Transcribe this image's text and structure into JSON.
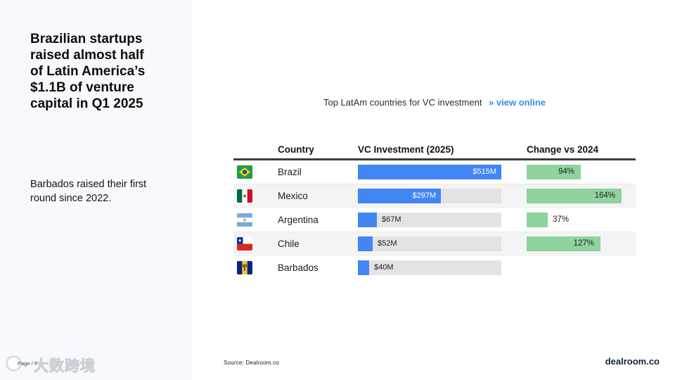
{
  "sidebar": {
    "title": "Brazilian startups raised almost half of Latin America’s $1.1B of venture capital in Q1 2025",
    "subtitle": "Barbados raised their first round since 2022."
  },
  "chart_header": {
    "title": "Top LatAm countries for VC investment",
    "link_arrows": "»",
    "link_label": "view online"
  },
  "table": {
    "columns": [
      "Country",
      "VC Investment (2025)",
      "Change vs 2024"
    ]
  },
  "chart_data": {
    "type": "bar",
    "title": "Top LatAm countries for VC investment",
    "categories": [
      "Brazil",
      "Mexico",
      "Argentina",
      "Chile",
      "Barbados"
    ],
    "series": [
      {
        "name": "VC Investment (2025)",
        "unit": "USD million",
        "values": [
          515,
          297,
          67,
          52,
          40
        ],
        "labels": [
          "$515M",
          "$297M",
          "$67M",
          "$52M",
          "$40M"
        ],
        "max": 515,
        "color": "#4285f4"
      },
      {
        "name": "Change vs 2024",
        "unit": "percent",
        "values": [
          94,
          164,
          37,
          127,
          null
        ],
        "labels": [
          "94%",
          "164%",
          "37%",
          "127%",
          ""
        ],
        "max": 164,
        "color": "#8fd49e"
      }
    ],
    "flags": [
      "brazil-flag-icon",
      "mexico-flag-icon",
      "argentina-flag-icon",
      "chile-flag-icon",
      "barbados-flag-icon"
    ],
    "striped_rows": [
      1,
      3
    ],
    "grid": false,
    "legend_position": "none"
  },
  "footer": {
    "source": "Source:  Dealroom.co",
    "brand": "dealroom.co",
    "page_label": "Page / 7",
    "watermark": "大数跨境"
  },
  "colors": {
    "investment_bar": "#4285f4",
    "investment_track": "#e3e3e5",
    "change_bar": "#8fd49e",
    "link": "#3a8ce8",
    "header_rule": "#3d3d3d",
    "row_stripe": "#f4f4f5",
    "sidebar_bg": "#f8f9fc",
    "brand_navy": "#12233d"
  }
}
